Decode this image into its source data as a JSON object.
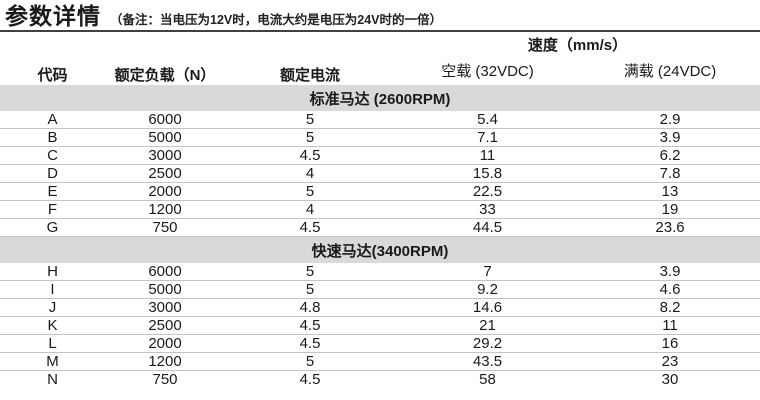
{
  "page": {
    "title": "参数详情",
    "note": "（备注：当电压为12V时，电流大约是电压为24V时的一倍）"
  },
  "table": {
    "headers": {
      "code": "代码",
      "rated_load": "额定负载（N）",
      "rated_current": "额定电流",
      "speed_group": "速度（mm/s）",
      "no_load": "空载 (32VDC)",
      "full_load": "满载 (24VDC)"
    },
    "colors": {
      "section_band": "#d9d9d9",
      "row_divider": "#c4c4c4",
      "title_rule": "#414141",
      "text": "#1a1a1a"
    },
    "sections": [
      {
        "label": "标准马达 (2600RPM)",
        "rows": [
          {
            "code": "A",
            "load": "6000",
            "current": "5",
            "no_load": "5.4",
            "full_load": "2.9"
          },
          {
            "code": "B",
            "load": "5000",
            "current": "5",
            "no_load": "7.1",
            "full_load": "3.9"
          },
          {
            "code": "C",
            "load": "3000",
            "current": "4.5",
            "no_load": "11",
            "full_load": "6.2"
          },
          {
            "code": "D",
            "load": "2500",
            "current": "4",
            "no_load": "15.8",
            "full_load": "7.8"
          },
          {
            "code": "E",
            "load": "2000",
            "current": "5",
            "no_load": "22.5",
            "full_load": "13"
          },
          {
            "code": "F",
            "load": "1200",
            "current": "4",
            "no_load": "33",
            "full_load": "19"
          },
          {
            "code": "G",
            "load": "750",
            "current": "4.5",
            "no_load": "44.5",
            "full_load": "23.6"
          }
        ]
      },
      {
        "label": "快速马达(3400RPM)",
        "rows": [
          {
            "code": "H",
            "load": "6000",
            "current": "5",
            "no_load": "7",
            "full_load": "3.9"
          },
          {
            "code": "I",
            "load": "5000",
            "current": "5",
            "no_load": "9.2",
            "full_load": "4.6"
          },
          {
            "code": "J",
            "load": "3000",
            "current": "4.8",
            "no_load": "14.6",
            "full_load": "8.2"
          },
          {
            "code": "K",
            "load": "2500",
            "current": "4.5",
            "no_load": "21",
            "full_load": "11"
          },
          {
            "code": "L",
            "load": "2000",
            "current": "4.5",
            "no_load": "29.2",
            "full_load": "16"
          },
          {
            "code": "M",
            "load": "1200",
            "current": "5",
            "no_load": "43.5",
            "full_load": "23"
          },
          {
            "code": "N",
            "load": "750",
            "current": "4.5",
            "no_load": "58",
            "full_load": "30"
          }
        ]
      }
    ]
  }
}
